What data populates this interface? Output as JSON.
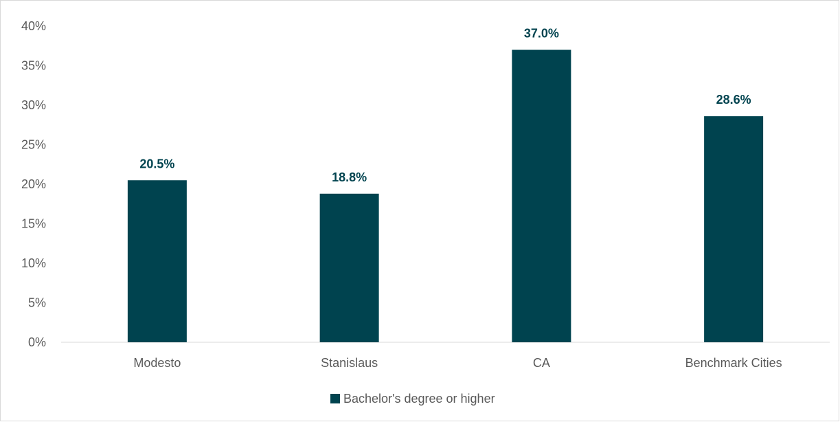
{
  "chart_data": {
    "type": "bar",
    "categories": [
      "Modesto",
      "Stanislaus",
      "CA",
      "Benchmark Cities"
    ],
    "series": [
      {
        "name": "Bachelor's degree or higher",
        "values": [
          20.5,
          18.8,
          37.0,
          28.6
        ],
        "data_labels": [
          "20.5%",
          "18.8%",
          "37.0%",
          "28.6%"
        ],
        "color": "#00434f"
      }
    ],
    "y_ticks": [
      0,
      5,
      10,
      15,
      20,
      25,
      30,
      35,
      40
    ],
    "y_tick_labels": [
      "0%",
      "5%",
      "10%",
      "15%",
      "20%",
      "25%",
      "30%",
      "35%",
      "40%"
    ],
    "ylim": [
      0,
      40
    ],
    "title": "",
    "xlabel": "",
    "ylabel": "",
    "grid": false,
    "legend_position": "bottom"
  }
}
